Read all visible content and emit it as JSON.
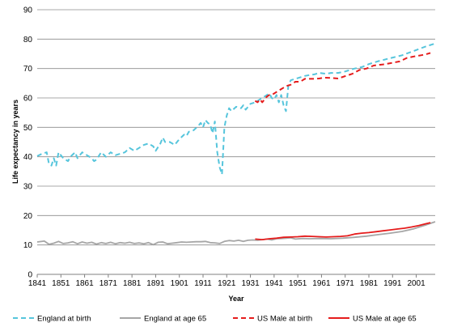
{
  "chart_data": {
    "type": "line",
    "title": "",
    "xlabel": "Year",
    "ylabel": "Life expectancy in years",
    "xlim": [
      1841,
      2009
    ],
    "ylim": [
      0,
      90
    ],
    "x_ticks": [
      1841,
      1851,
      1861,
      1871,
      1881,
      1891,
      1901,
      1911,
      1921,
      1931,
      1941,
      1951,
      1961,
      1971,
      1981,
      1991,
      2001
    ],
    "y_ticks": [
      0,
      10,
      20,
      30,
      40,
      50,
      60,
      70,
      80,
      90
    ],
    "grid": "horizontal",
    "legend_position": "bottom",
    "series": [
      {
        "name": "England at birth",
        "color": "#56c5dc",
        "style": "dashed",
        "points": [
          [
            1841,
            40.2
          ],
          [
            1843,
            41.0
          ],
          [
            1845,
            41.5
          ],
          [
            1846,
            37.5
          ],
          [
            1847,
            37.0
          ],
          [
            1848,
            39.5
          ],
          [
            1849,
            37.0
          ],
          [
            1850,
            41.5
          ],
          [
            1852,
            39.5
          ],
          [
            1854,
            38.5
          ],
          [
            1855,
            40.0
          ],
          [
            1857,
            41.5
          ],
          [
            1858,
            39.5
          ],
          [
            1860,
            41.5
          ],
          [
            1862,
            40.5
          ],
          [
            1864,
            39.5
          ],
          [
            1865,
            38.5
          ],
          [
            1866,
            39.0
          ],
          [
            1868,
            41.5
          ],
          [
            1870,
            40.0
          ],
          [
            1872,
            41.5
          ],
          [
            1874,
            40.5
          ],
          [
            1876,
            41.0
          ],
          [
            1878,
            41.5
          ],
          [
            1880,
            43.0
          ],
          [
            1882,
            42.0
          ],
          [
            1884,
            43.0
          ],
          [
            1886,
            44.0
          ],
          [
            1888,
            44.5
          ],
          [
            1890,
            43.5
          ],
          [
            1891,
            42.0
          ],
          [
            1893,
            44.5
          ],
          [
            1894,
            46.5
          ],
          [
            1895,
            45.0
          ],
          [
            1897,
            45.0
          ],
          [
            1899,
            44.0
          ],
          [
            1901,
            46.0
          ],
          [
            1903,
            47.5
          ],
          [
            1904,
            47.0
          ],
          [
            1905,
            48.5
          ],
          [
            1907,
            49.0
          ],
          [
            1909,
            50.5
          ],
          [
            1910,
            51.5
          ],
          [
            1911,
            50.0
          ],
          [
            1912,
            52.5
          ],
          [
            1913,
            51.5
          ],
          [
            1914,
            51.0
          ],
          [
            1915,
            48.0
          ],
          [
            1916,
            52.0
          ],
          [
            1917,
            41.5
          ],
          [
            1918,
            36.5
          ],
          [
            1919,
            34.0
          ],
          [
            1920,
            50.0
          ],
          [
            1921,
            54.0
          ],
          [
            1922,
            56.5
          ],
          [
            1923,
            55.5
          ],
          [
            1925,
            57.0
          ],
          [
            1927,
            56.5
          ],
          [
            1928,
            57.5
          ],
          [
            1929,
            56.0
          ],
          [
            1931,
            58.0
          ],
          [
            1933,
            58.5
          ],
          [
            1935,
            59.5
          ],
          [
            1937,
            60.5
          ],
          [
            1939,
            61.5
          ],
          [
            1940,
            60.0
          ],
          [
            1941,
            59.5
          ],
          [
            1942,
            61.0
          ],
          [
            1943,
            58.5
          ],
          [
            1944,
            61.0
          ],
          [
            1945,
            57.5
          ],
          [
            1946,
            55.5
          ],
          [
            1947,
            64.0
          ],
          [
            1948,
            66.0
          ],
          [
            1950,
            66.5
          ],
          [
            1952,
            67.0
          ],
          [
            1954,
            67.5
          ],
          [
            1956,
            67.8
          ],
          [
            1958,
            68.0
          ],
          [
            1960,
            68.5
          ],
          [
            1963,
            68.2
          ],
          [
            1965,
            68.5
          ],
          [
            1968,
            68.5
          ],
          [
            1971,
            69.0
          ],
          [
            1975,
            70.0
          ],
          [
            1978,
            70.5
          ],
          [
            1981,
            71.5
          ],
          [
            1985,
            72.5
          ],
          [
            1990,
            73.5
          ],
          [
            1995,
            74.5
          ],
          [
            2000,
            76.0
          ],
          [
            2005,
            77.5
          ],
          [
            2009,
            78.5
          ]
        ]
      },
      {
        "name": "England at age 65",
        "color": "#a6a6a6",
        "style": "solid",
        "points": [
          [
            1841,
            11.0
          ],
          [
            1844,
            11.3
          ],
          [
            1846,
            10.2
          ],
          [
            1848,
            10.6
          ],
          [
            1850,
            11.2
          ],
          [
            1852,
            10.5
          ],
          [
            1854,
            10.7
          ],
          [
            1856,
            11.1
          ],
          [
            1858,
            10.4
          ],
          [
            1860,
            11.0
          ],
          [
            1862,
            10.6
          ],
          [
            1864,
            10.9
          ],
          [
            1866,
            10.3
          ],
          [
            1868,
            10.8
          ],
          [
            1870,
            10.5
          ],
          [
            1872,
            10.9
          ],
          [
            1874,
            10.4
          ],
          [
            1876,
            10.8
          ],
          [
            1878,
            10.6
          ],
          [
            1880,
            10.9
          ],
          [
            1882,
            10.5
          ],
          [
            1884,
            10.7
          ],
          [
            1886,
            10.4
          ],
          [
            1888,
            10.8
          ],
          [
            1890,
            10.1
          ],
          [
            1892,
            10.9
          ],
          [
            1894,
            11.0
          ],
          [
            1896,
            10.4
          ],
          [
            1898,
            10.6
          ],
          [
            1900,
            10.8
          ],
          [
            1902,
            11.0
          ],
          [
            1904,
            10.9
          ],
          [
            1906,
            11.0
          ],
          [
            1908,
            11.1
          ],
          [
            1910,
            11.1
          ],
          [
            1912,
            11.2
          ],
          [
            1914,
            10.8
          ],
          [
            1916,
            10.7
          ],
          [
            1918,
            10.5
          ],
          [
            1920,
            11.2
          ],
          [
            1922,
            11.5
          ],
          [
            1924,
            11.3
          ],
          [
            1926,
            11.6
          ],
          [
            1928,
            11.2
          ],
          [
            1930,
            11.6
          ],
          [
            1932,
            11.7
          ],
          [
            1934,
            11.6
          ],
          [
            1936,
            11.8
          ],
          [
            1938,
            12.0
          ],
          [
            1940,
            11.7
          ],
          [
            1942,
            12.1
          ],
          [
            1944,
            12.2
          ],
          [
            1946,
            12.3
          ],
          [
            1948,
            12.4
          ],
          [
            1950,
            12.0
          ],
          [
            1953,
            12.2
          ],
          [
            1956,
            12.1
          ],
          [
            1960,
            12.2
          ],
          [
            1965,
            12.1
          ],
          [
            1970,
            12.3
          ],
          [
            1975,
            12.6
          ],
          [
            1980,
            13.0
          ],
          [
            1985,
            13.5
          ],
          [
            1990,
            14.0
          ],
          [
            1995,
            14.6
          ],
          [
            2000,
            15.5
          ],
          [
            2005,
            16.8
          ],
          [
            2009,
            17.9
          ]
        ]
      },
      {
        "name": "US Male at birth",
        "color": "#e51c1c",
        "style": "dashed",
        "points": [
          [
            1933,
            59.0
          ],
          [
            1934,
            58.5
          ],
          [
            1935,
            59.5
          ],
          [
            1936,
            58.5
          ],
          [
            1937,
            59.5
          ],
          [
            1938,
            60.5
          ],
          [
            1939,
            61.0
          ],
          [
            1940,
            61.0
          ],
          [
            1942,
            62.0
          ],
          [
            1943,
            62.5
          ],
          [
            1944,
            63.0
          ],
          [
            1945,
            63.5
          ],
          [
            1946,
            64.0
          ],
          [
            1948,
            64.5
          ],
          [
            1950,
            65.5
          ],
          [
            1952,
            65.5
          ],
          [
            1954,
            66.5
          ],
          [
            1956,
            66.5
          ],
          [
            1958,
            66.5
          ],
          [
            1960,
            66.6
          ],
          [
            1962,
            66.9
          ],
          [
            1965,
            66.8
          ],
          [
            1968,
            66.6
          ],
          [
            1971,
            67.4
          ],
          [
            1974,
            68.2
          ],
          [
            1977,
            69.5
          ],
          [
            1980,
            70.0
          ],
          [
            1983,
            71.0
          ],
          [
            1987,
            71.4
          ],
          [
            1990,
            71.8
          ],
          [
            1994,
            72.4
          ],
          [
            1997,
            73.6
          ],
          [
            2000,
            74.1
          ],
          [
            2003,
            74.5
          ],
          [
            2005,
            74.8
          ],
          [
            2007,
            75.3
          ]
        ]
      },
      {
        "name": "US Male at age 65",
        "color": "#e51c1c",
        "style": "solid",
        "points": [
          [
            1933,
            12.0
          ],
          [
            1936,
            11.8
          ],
          [
            1939,
            12.1
          ],
          [
            1942,
            12.3
          ],
          [
            1945,
            12.6
          ],
          [
            1948,
            12.7
          ],
          [
            1951,
            12.8
          ],
          [
            1954,
            13.0
          ],
          [
            1957,
            12.9
          ],
          [
            1960,
            12.8
          ],
          [
            1963,
            12.7
          ],
          [
            1966,
            12.8
          ],
          [
            1969,
            12.9
          ],
          [
            1972,
            13.1
          ],
          [
            1975,
            13.7
          ],
          [
            1978,
            14.0
          ],
          [
            1981,
            14.2
          ],
          [
            1984,
            14.5
          ],
          [
            1987,
            14.8
          ],
          [
            1990,
            15.1
          ],
          [
            1993,
            15.4
          ],
          [
            1996,
            15.7
          ],
          [
            1999,
            16.1
          ],
          [
            2002,
            16.6
          ],
          [
            2005,
            17.2
          ],
          [
            2007,
            17.6
          ]
        ]
      }
    ]
  }
}
